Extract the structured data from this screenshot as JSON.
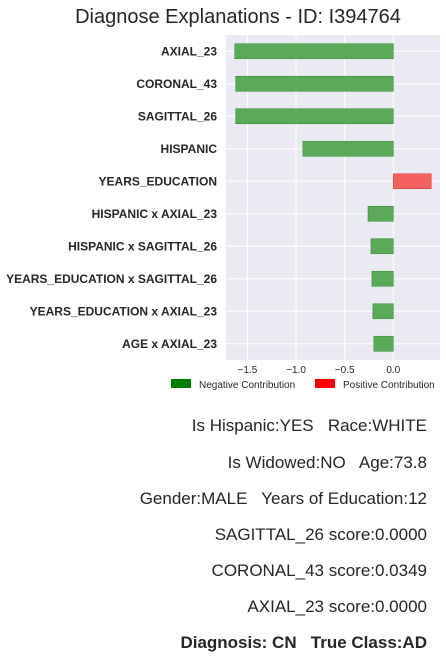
{
  "chart_data": {
    "type": "bar",
    "orientation": "horizontal",
    "title": "Diagnose Explanations - ID: I394764",
    "categories": [
      "AXIAL_23",
      "CORONAL_43",
      "SAGITTAL_26",
      "HISPANIC",
      "YEARS_EDUCATION",
      "HISPANIC x AXIAL_23",
      "HISPANIC x SAGITTAL_26",
      "YEARS_EDUCATION x SAGITTAL_26",
      "YEARS_EDUCATION x AXIAL_23",
      "AGE x AXIAL_23"
    ],
    "values": [
      -1.63,
      -1.62,
      -1.62,
      -0.93,
      0.39,
      -0.26,
      -0.23,
      -0.22,
      -0.21,
      -0.2
    ],
    "xlim": [
      -1.72,
      0.48
    ],
    "xticks": [
      -1.5,
      -1.0,
      -0.5,
      0.0
    ],
    "xtick_labels": [
      "−1.5",
      "−1.0",
      "−0.5",
      "0.0"
    ],
    "grid": true,
    "legend_position": "bottom-right",
    "legend": [
      {
        "label": "Negative Contribution",
        "color": "#008000"
      },
      {
        "label": "Positive Contribution",
        "color": "#ff0000"
      }
    ],
    "colors": {
      "negative_bar": "#5aaa5a",
      "positive_bar": "#f56060",
      "plot_bg": "#eaeaf2",
      "grid": "#ffffff"
    }
  },
  "info": {
    "line1": "Is Hispanic:YES   Race:WHITE",
    "line2": "Is Widowed:NO   Age:73.8",
    "line3": "Gender:MALE   Years of Education:12",
    "line4": "SAGITTAL_26 score:0.0000",
    "line5": "CORONAL_43 score:0.0349",
    "line6": "AXIAL_23 score:0.0000",
    "line7": "Diagnosis: CN   True Class:AD"
  }
}
